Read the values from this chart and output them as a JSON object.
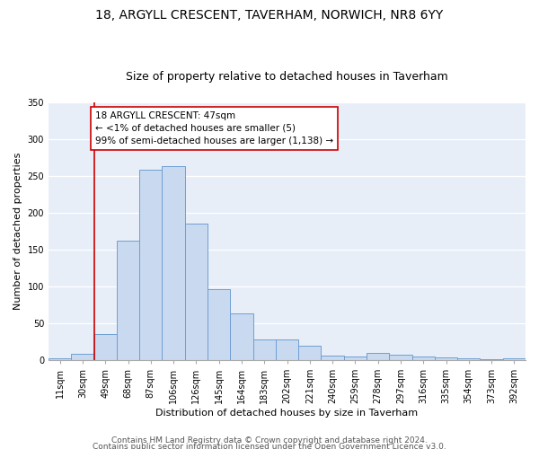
{
  "title": "18, ARGYLL CRESCENT, TAVERHAM, NORWICH, NR8 6YY",
  "subtitle": "Size of property relative to detached houses in Taverham",
  "xlabel": "Distribution of detached houses by size in Taverham",
  "ylabel": "Number of detached properties",
  "bar_color": "#c9d9ef",
  "bar_edge_color": "#6e9fd4",
  "bg_color": "#e8eef8",
  "categories": [
    "11sqm",
    "30sqm",
    "49sqm",
    "68sqm",
    "87sqm",
    "106sqm",
    "126sqm",
    "145sqm",
    "164sqm",
    "183sqm",
    "202sqm",
    "221sqm",
    "240sqm",
    "259sqm",
    "278sqm",
    "297sqm",
    "316sqm",
    "335sqm",
    "354sqm",
    "373sqm",
    "392sqm"
  ],
  "values": [
    3,
    8,
    35,
    162,
    258,
    263,
    185,
    96,
    63,
    28,
    28,
    20,
    6,
    5,
    10,
    7,
    5,
    4,
    3,
    1,
    3
  ],
  "vline_color": "#cc0000",
  "vline_x_idx": 2,
  "annotation_text": "18 ARGYLL CRESCENT: 47sqm\n← <1% of detached houses are smaller (5)\n99% of semi-detached houses are larger (1,138) →",
  "annotation_box_color": "white",
  "annotation_box_edge": "#cc0000",
  "ylim": [
    0,
    350
  ],
  "yticks": [
    0,
    50,
    100,
    150,
    200,
    250,
    300,
    350
  ],
  "footer1": "Contains HM Land Registry data © Crown copyright and database right 2024.",
  "footer2": "Contains public sector information licensed under the Open Government Licence v3.0.",
  "title_fontsize": 10,
  "subtitle_fontsize": 9,
  "xlabel_fontsize": 8,
  "ylabel_fontsize": 8,
  "tick_fontsize": 7,
  "annotation_fontsize": 7.5,
  "footer_fontsize": 6.5
}
